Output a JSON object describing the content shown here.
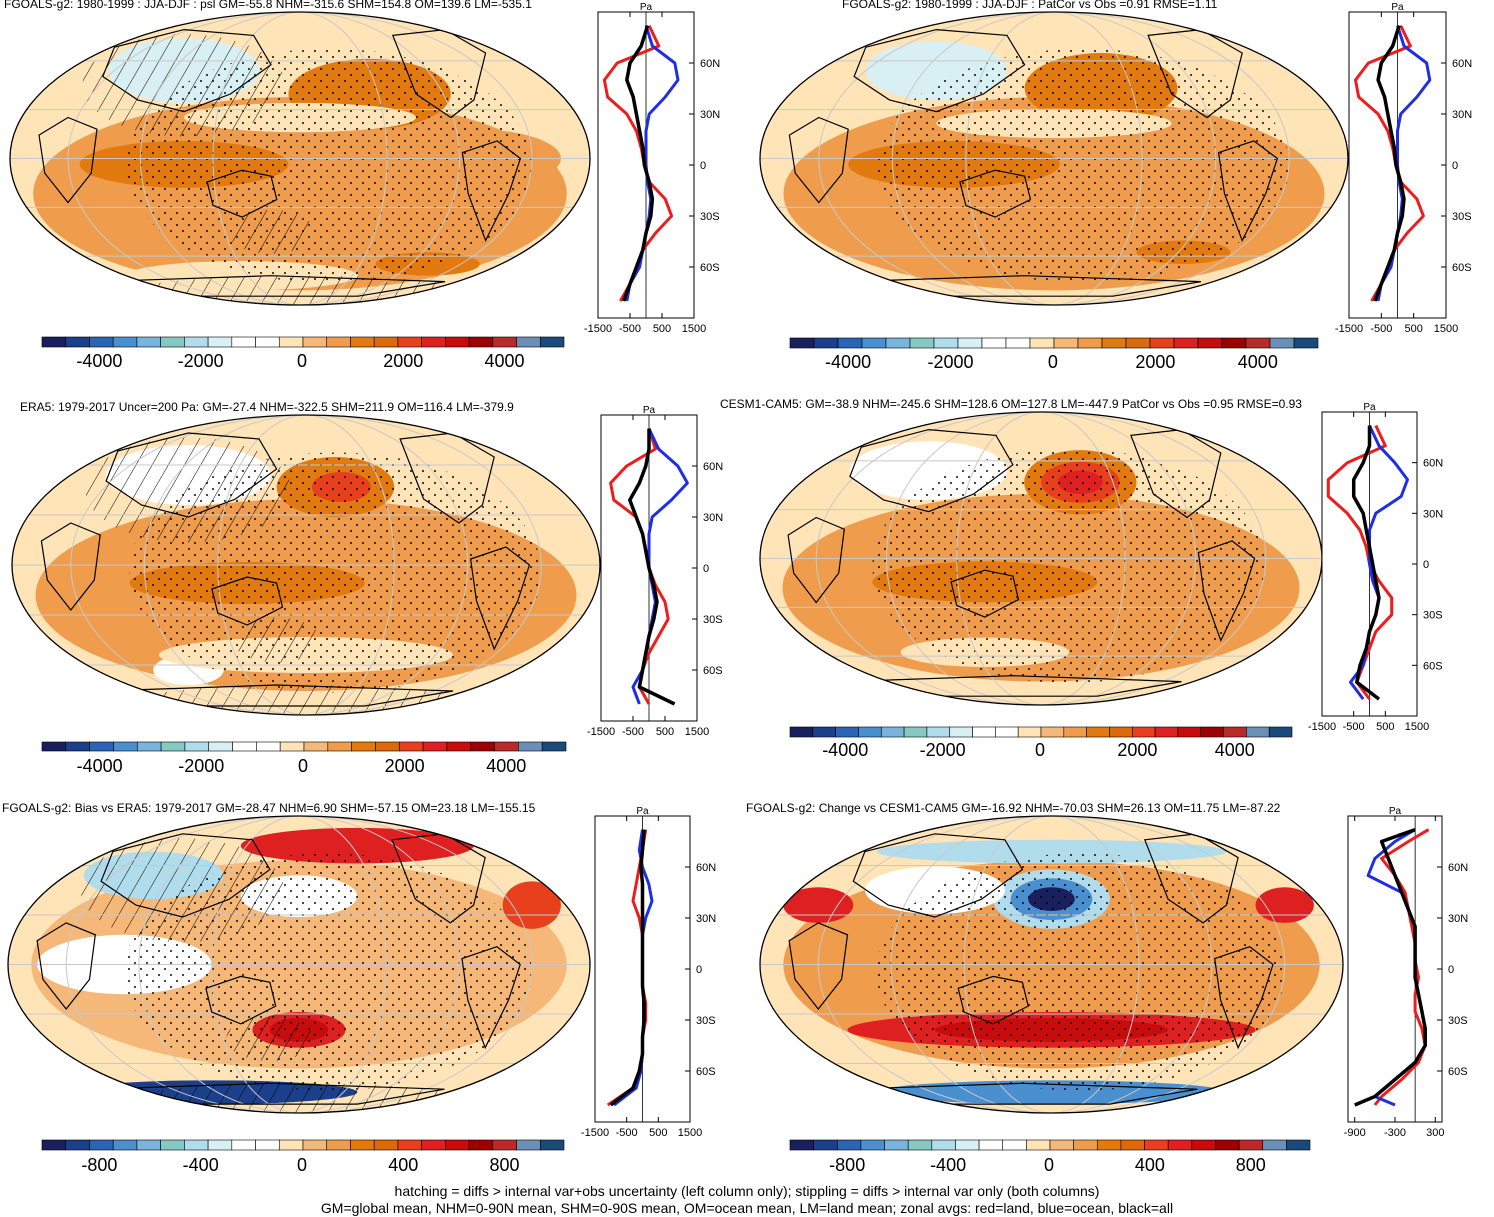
{
  "caption": {
    "line1": "hatching = diffs > internal var+obs uncertainty (left column only); stippling = diffs > internal var only (both columns)",
    "line2": "GM=global mean, NHM=0-90N mean, SHM=0-90S mean, OM=ocean mean, LM=land mean; zonal avgs: red=land, blue=ocean, black=all"
  },
  "colors": {
    "palette": [
      "#1a1f5e",
      "#1c3f8c",
      "#2a64b4",
      "#4a8fd0",
      "#78b4dc",
      "#86c8c2",
      "#b0dcec",
      "#d8f0f4",
      "#ffffff",
      "#ffffff",
      "#ffe4b8",
      "#f5b878",
      "#ef9d4d",
      "#e27a10",
      "#dc6a0a",
      "#e8401c",
      "#df2020",
      "#c80c0c",
      "#9c0000",
      "#ba2a2a",
      "#6a90b8",
      "#1a4a7c"
    ],
    "land": "#ee1c1c",
    "ocean": "#1f2ee6",
    "all": "#000000"
  },
  "chart_data": [
    {
      "type": "map",
      "title": "FGOALS-g2: 1980-1999 : JJA-DJF : psl GM=-55.8 NHM=-315.6 SHM=154.8 OM=139.6 LM=-535.1",
      "pattern": "hatching",
      "colorbar_ticks": [
        "-4000",
        "-2000",
        "0",
        "2000",
        "4000"
      ],
      "zonal_unit": "Pa",
      "zonal_xticks": [
        "-1500",
        "-500",
        "500",
        "1500"
      ],
      "zonal_xrange": [
        -1500,
        1500
      ],
      "lat_ticks": [
        "60N",
        "30N",
        "0",
        "30S",
        "60S"
      ],
      "zonal": {
        "lat": [
          82,
          70,
          60,
          50,
          40,
          30,
          20,
          10,
          0,
          -10,
          -20,
          -30,
          -40,
          -50,
          -60,
          -70,
          -80
        ],
        "land": [
          100,
          400,
          -900,
          -1300,
          -1200,
          -600,
          -300,
          -150,
          -50,
          100,
          600,
          800,
          300,
          -100,
          -300,
          -500,
          -800
        ],
        "ocean": [
          0,
          200,
          900,
          1000,
          600,
          100,
          0,
          0,
          0,
          50,
          150,
          100,
          0,
          -100,
          -200,
          -500,
          -600
        ],
        "all": [
          50,
          -150,
          -500,
          -600,
          -400,
          -300,
          -200,
          -100,
          -50,
          100,
          200,
          150,
          0,
          -100,
          -300,
          -500,
          -700
        ]
      }
    },
    {
      "type": "map",
      "title": "FGOALS-g2: 1980-1999 : JJA-DJF : PatCor vs Obs =0.91 RMSE=1.11",
      "pattern": "none",
      "colorbar_ticks": [
        "-4000",
        "-2000",
        "0",
        "2000",
        "4000"
      ],
      "zonal_unit": "Pa",
      "zonal_xticks": [
        "-1500",
        "-500",
        "500",
        "1500"
      ],
      "zonal_xrange": [
        -1500,
        1500
      ],
      "lat_ticks": [
        "60N",
        "30N",
        "0",
        "30S",
        "60S"
      ],
      "zonal": {
        "lat": [
          82,
          70,
          60,
          50,
          40,
          30,
          20,
          10,
          0,
          -10,
          -20,
          -30,
          -40,
          -50,
          -60,
          -70,
          -80
        ],
        "land": [
          100,
          400,
          -900,
          -1300,
          -1200,
          -600,
          -300,
          -150,
          -50,
          100,
          600,
          800,
          300,
          -100,
          -300,
          -500,
          -800
        ],
        "ocean": [
          0,
          200,
          900,
          1000,
          600,
          100,
          0,
          0,
          0,
          50,
          150,
          100,
          0,
          -100,
          -200,
          -500,
          -600
        ],
        "all": [
          50,
          -150,
          -500,
          -600,
          -400,
          -300,
          -200,
          -100,
          -50,
          100,
          200,
          150,
          0,
          -100,
          -300,
          -500,
          -700
        ]
      }
    },
    {
      "type": "map",
      "title": "ERA5: 1979-2017 Uncer=200 Pa: GM=-27.4 NHM=-322.5 SHM=211.9 OM=116.4 LM=-379.9",
      "pattern": "hatching",
      "colorbar_ticks": [
        "-4000",
        "-2000",
        "0",
        "2000",
        "4000"
      ],
      "zonal_unit": "Pa",
      "zonal_xticks": [
        "-1500",
        "-500",
        "500",
        "1500"
      ],
      "zonal_xrange": [
        -1500,
        1500
      ],
      "lat_ticks": [
        "60N",
        "30N",
        "0",
        "30S",
        "60S"
      ],
      "zonal": {
        "lat": [
          82,
          70,
          60,
          50,
          40,
          30,
          20,
          10,
          0,
          -10,
          -20,
          -30,
          -40,
          -50,
          -60,
          -70,
          -80
        ],
        "land": [
          0,
          200,
          -700,
          -1200,
          -1100,
          -400,
          -200,
          -100,
          0,
          200,
          500,
          600,
          300,
          0,
          -200,
          -300,
          0
        ],
        "ocean": [
          0,
          300,
          900,
          1200,
          700,
          100,
          0,
          0,
          0,
          100,
          200,
          100,
          0,
          -100,
          -200,
          -500,
          -300
        ],
        "all": [
          0,
          0,
          -100,
          -300,
          -600,
          -400,
          -200,
          -100,
          0,
          150,
          250,
          150,
          0,
          -100,
          -200,
          -300,
          800
        ]
      }
    },
    {
      "type": "map",
      "title": "CESM1-CAM5: GM=-38.9 NHM=-245.6 SHM=128.6 OM=127.8 LM=-447.9 PatCor vs Obs =0.95 RMSE=0.93",
      "pattern": "none",
      "colorbar_ticks": [
        "-4000",
        "-2000",
        "0",
        "2000",
        "4000"
      ],
      "zonal_unit": "Pa",
      "zonal_xticks": [
        "-1500",
        "-500",
        "500",
        "1500"
      ],
      "zonal_xrange": [
        -1500,
        1500
      ],
      "lat_ticks": [
        "60N",
        "30N",
        "0",
        "30S",
        "60S"
      ],
      "zonal": {
        "lat": [
          82,
          70,
          60,
          50,
          40,
          30,
          20,
          10,
          0,
          -10,
          -20,
          -30,
          -40,
          -50,
          -60,
          -70,
          -80
        ],
        "land": [
          200,
          500,
          -700,
          -1300,
          -1300,
          -700,
          -300,
          -100,
          0,
          300,
          700,
          700,
          200,
          0,
          -200,
          -400,
          0
        ],
        "ocean": [
          0,
          300,
          800,
          1200,
          1000,
          200,
          0,
          0,
          0,
          100,
          300,
          200,
          0,
          -100,
          -200,
          -600,
          -200
        ],
        "all": [
          0,
          0,
          -200,
          -500,
          -500,
          -200,
          -100,
          0,
          100,
          200,
          300,
          200,
          0,
          -100,
          -300,
          -400,
          300
        ]
      }
    },
    {
      "type": "map",
      "title": "FGOALS-g2: Bias vs ERA5: 1979-2017 GM=-28.47 NHM=6.90 SHM=-57.15 OM=23.18 LM=-155.15",
      "pattern": "hatching",
      "colorbar_ticks": [
        "-800",
        "-400",
        "0",
        "400",
        "800"
      ],
      "zonal_unit": "Pa",
      "zonal_xticks": [
        "-1500",
        "-500",
        "500",
        "1500"
      ],
      "zonal_xrange": [
        -1500,
        1500
      ],
      "lat_ticks": [
        "60N",
        "30N",
        "0",
        "30S",
        "60S"
      ],
      "zonal": {
        "lat": [
          82,
          70,
          60,
          50,
          40,
          30,
          20,
          10,
          0,
          -10,
          -20,
          -30,
          -40,
          -50,
          -60,
          -70,
          -80
        ],
        "land": [
          100,
          0,
          -100,
          -200,
          -300,
          -100,
          0,
          0,
          0,
          0,
          100,
          100,
          0,
          0,
          -100,
          -300,
          -1100
        ],
        "ocean": [
          0,
          -100,
          0,
          200,
          300,
          100,
          0,
          0,
          0,
          0,
          50,
          50,
          0,
          0,
          -50,
          -200,
          -900
        ],
        "all": [
          50,
          0,
          -50,
          0,
          0,
          0,
          0,
          0,
          0,
          0,
          50,
          50,
          0,
          0,
          -100,
          -300,
          -1000
        ]
      }
    },
    {
      "type": "map",
      "title": "FGOALS-g2: Change vs CESM1-CAM5 GM=-16.92 NHM=-70.03 SHM=26.13 OM=11.75 LM=-87.22",
      "pattern": "none",
      "colorbar_ticks": [
        "-800",
        "-400",
        "0",
        "400",
        "800"
      ],
      "zonal_unit": "Pa",
      "zonal_xticks": [
        "-900",
        "-300",
        "300"
      ],
      "zonal_xrange": [
        -1000,
        400
      ],
      "lat_ticks": [
        "60N",
        "30N",
        "0",
        "30S",
        "60S"
      ],
      "zonal": {
        "lat": [
          82,
          75,
          65,
          55,
          45,
          35,
          25,
          15,
          5,
          -5,
          -15,
          -25,
          -35,
          -45,
          -55,
          -65,
          -75,
          -80
        ],
        "land": [
          200,
          -100,
          -500,
          -300,
          -150,
          -100,
          -50,
          0,
          0,
          50,
          0,
          0,
          100,
          150,
          50,
          -200,
          -500,
          -600
        ],
        "ocean": [
          0,
          -300,
          -600,
          -700,
          -200,
          -100,
          0,
          0,
          0,
          0,
          50,
          100,
          150,
          150,
          0,
          -300,
          -600,
          -300
        ],
        "all": [
          0,
          -500,
          -400,
          -300,
          -200,
          -100,
          0,
          0,
          0,
          0,
          50,
          100,
          150,
          150,
          0,
          -300,
          -600,
          -900
        ]
      }
    }
  ]
}
